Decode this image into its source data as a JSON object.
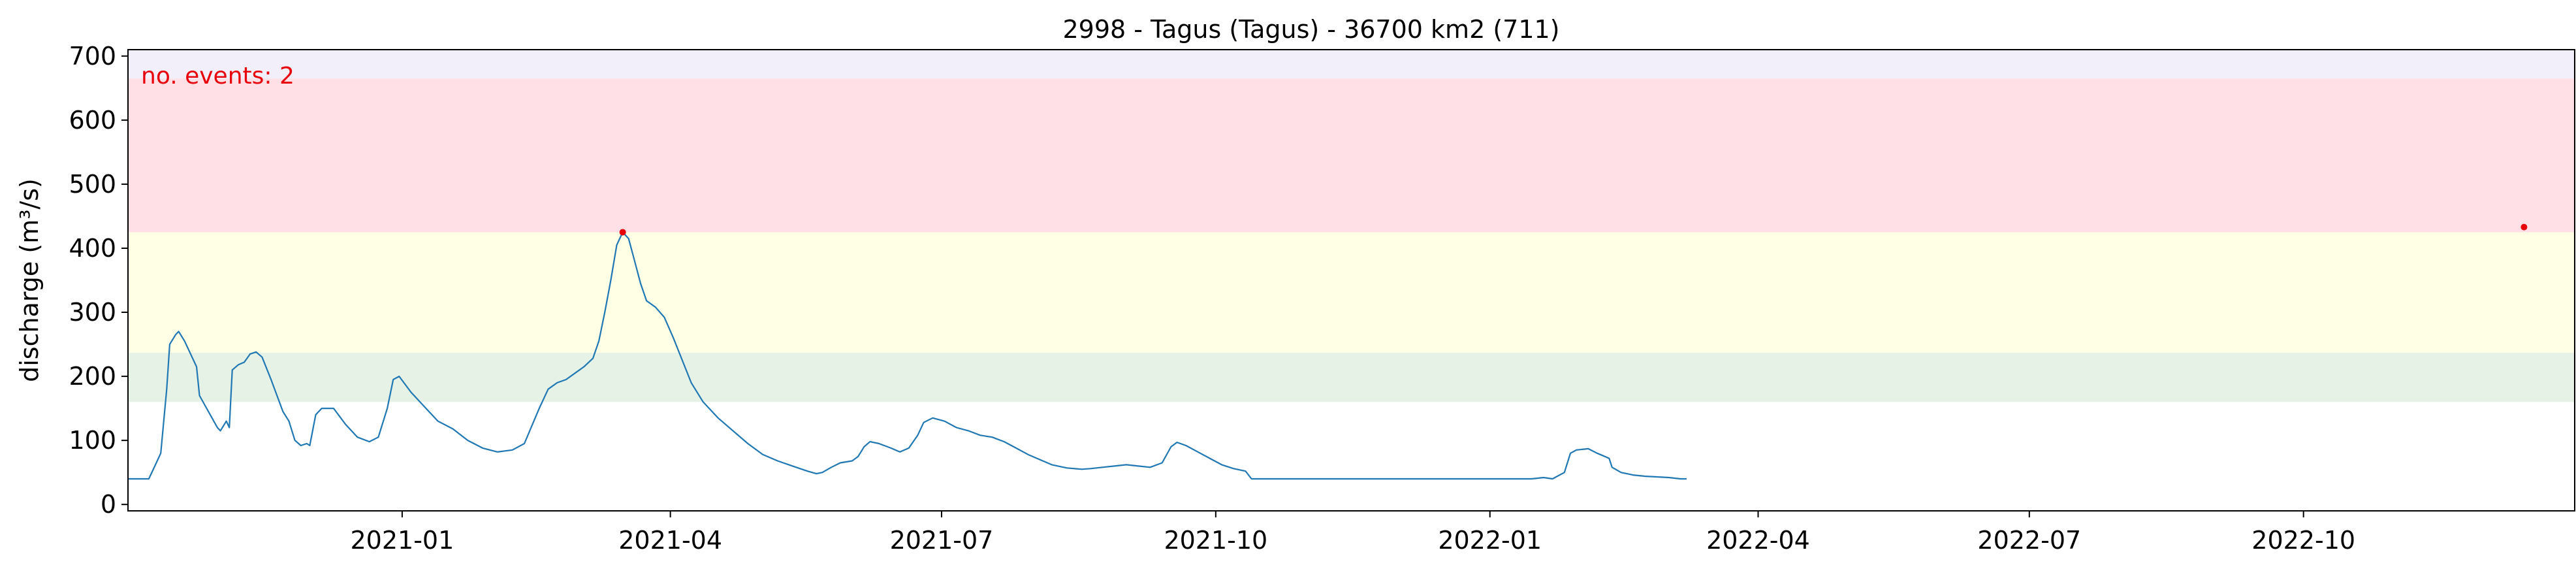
{
  "chart_data": {
    "type": "line",
    "title": "2998 - Tagus (Tagus) - 36700 km2 (711)",
    "xlabel": "",
    "ylabel": "discharge (m³/s)",
    "xlim": [
      "2020-10-01",
      "2022-12-31"
    ],
    "ylim": [
      -10,
      710
    ],
    "grid": false,
    "x_ticks": [
      "2021-01",
      "2021-04",
      "2021-07",
      "2021-10",
      "2022-01",
      "2022-04",
      "2022-07",
      "2022-10"
    ],
    "y_ticks": [
      0,
      100,
      200,
      300,
      400,
      500,
      600,
      700
    ],
    "annotation": {
      "text": "no. events: 2",
      "color": "#e8000b"
    },
    "threshold_bands": [
      {
        "from": 160,
        "to": 237,
        "color": "#e5f2e5"
      },
      {
        "from": 237,
        "to": 425,
        "color": "#ffffe5"
      },
      {
        "from": 425,
        "to": 665,
        "color": "#ffe0e6"
      },
      {
        "from": 665,
        "to": 710,
        "color": "#f2eefa"
      }
    ],
    "series": [
      {
        "color": "#1f77b4",
        "points": [
          [
            "2020-10-01",
            40
          ],
          [
            "2020-10-08",
            40
          ],
          [
            "2020-10-10",
            60
          ],
          [
            "2020-10-12",
            80
          ],
          [
            "2020-10-14",
            180
          ],
          [
            "2020-10-15",
            250
          ],
          [
            "2020-10-17",
            265
          ],
          [
            "2020-10-18",
            270
          ],
          [
            "2020-10-20",
            255
          ],
          [
            "2020-10-24",
            215
          ],
          [
            "2020-10-25",
            170
          ],
          [
            "2020-10-28",
            145
          ],
          [
            "2020-10-31",
            120
          ],
          [
            "2020-11-01",
            115
          ],
          [
            "2020-11-03",
            130
          ],
          [
            "2020-11-04",
            120
          ],
          [
            "2020-11-05",
            210
          ],
          [
            "2020-11-07",
            218
          ],
          [
            "2020-11-09",
            222
          ],
          [
            "2020-11-11",
            235
          ],
          [
            "2020-11-13",
            238
          ],
          [
            "2020-11-15",
            230
          ],
          [
            "2020-11-18",
            195
          ],
          [
            "2020-11-22",
            145
          ],
          [
            "2020-11-24",
            130
          ],
          [
            "2020-11-26",
            100
          ],
          [
            "2020-11-28",
            92
          ],
          [
            "2020-11-30",
            95
          ],
          [
            "2020-12-01",
            92
          ],
          [
            "2020-12-03",
            140
          ],
          [
            "2020-12-05",
            150
          ],
          [
            "2020-12-09",
            150
          ],
          [
            "2020-12-13",
            125
          ],
          [
            "2020-12-17",
            105
          ],
          [
            "2020-12-21",
            98
          ],
          [
            "2020-12-24",
            105
          ],
          [
            "2020-12-27",
            150
          ],
          [
            "2020-12-29",
            195
          ],
          [
            "2020-12-31",
            200
          ],
          [
            "2021-01-04",
            175
          ],
          [
            "2021-01-08",
            155
          ],
          [
            "2021-01-13",
            130
          ],
          [
            "2021-01-18",
            118
          ],
          [
            "2021-01-23",
            100
          ],
          [
            "2021-01-28",
            88
          ],
          [
            "2021-02-02",
            82
          ],
          [
            "2021-02-07",
            85
          ],
          [
            "2021-02-11",
            95
          ],
          [
            "2021-02-16",
            150
          ],
          [
            "2021-02-19",
            180
          ],
          [
            "2021-02-22",
            190
          ],
          [
            "2021-02-25",
            195
          ],
          [
            "2021-02-28",
            205
          ],
          [
            "2021-03-03",
            215
          ],
          [
            "2021-03-06",
            228
          ],
          [
            "2021-03-08",
            255
          ],
          [
            "2021-03-10",
            300
          ],
          [
            "2021-03-12",
            350
          ],
          [
            "2021-03-14",
            405
          ],
          [
            "2021-03-16",
            425
          ],
          [
            "2021-03-18",
            415
          ],
          [
            "2021-03-20",
            380
          ],
          [
            "2021-03-22",
            345
          ],
          [
            "2021-03-24",
            318
          ],
          [
            "2021-03-27",
            308
          ],
          [
            "2021-03-30",
            292
          ],
          [
            "2021-04-02",
            260
          ],
          [
            "2021-04-05",
            225
          ],
          [
            "2021-04-08",
            190
          ],
          [
            "2021-04-12",
            160
          ],
          [
            "2021-04-17",
            135
          ],
          [
            "2021-04-22",
            115
          ],
          [
            "2021-04-27",
            95
          ],
          [
            "2021-05-02",
            78
          ],
          [
            "2021-05-07",
            68
          ],
          [
            "2021-05-12",
            60
          ],
          [
            "2021-05-17",
            52
          ],
          [
            "2021-05-20",
            48
          ],
          [
            "2021-05-22",
            50
          ],
          [
            "2021-05-25",
            58
          ],
          [
            "2021-05-28",
            65
          ],
          [
            "2021-06-01",
            68
          ],
          [
            "2021-06-03",
            75
          ],
          [
            "2021-06-05",
            90
          ],
          [
            "2021-06-07",
            98
          ],
          [
            "2021-06-10",
            95
          ],
          [
            "2021-06-14",
            88
          ],
          [
            "2021-06-17",
            82
          ],
          [
            "2021-06-20",
            88
          ],
          [
            "2021-06-23",
            108
          ],
          [
            "2021-06-25",
            128
          ],
          [
            "2021-06-28",
            135
          ],
          [
            "2021-07-02",
            130
          ],
          [
            "2021-07-06",
            120
          ],
          [
            "2021-07-10",
            115
          ],
          [
            "2021-07-14",
            108
          ],
          [
            "2021-07-18",
            105
          ],
          [
            "2021-07-22",
            98
          ],
          [
            "2021-07-26",
            88
          ],
          [
            "2021-07-30",
            78
          ],
          [
            "2021-08-03",
            70
          ],
          [
            "2021-08-07",
            62
          ],
          [
            "2021-08-12",
            57
          ],
          [
            "2021-08-17",
            55
          ],
          [
            "2021-08-20",
            56
          ],
          [
            "2021-08-24",
            58
          ],
          [
            "2021-08-28",
            60
          ],
          [
            "2021-09-01",
            62
          ],
          [
            "2021-09-05",
            60
          ],
          [
            "2021-09-09",
            58
          ],
          [
            "2021-09-13",
            65
          ],
          [
            "2021-09-16",
            90
          ],
          [
            "2021-09-18",
            97
          ],
          [
            "2021-09-21",
            92
          ],
          [
            "2021-09-25",
            82
          ],
          [
            "2021-09-29",
            72
          ],
          [
            "2021-10-03",
            62
          ],
          [
            "2021-10-07",
            56
          ],
          [
            "2021-10-11",
            52
          ],
          [
            "2021-10-13",
            40
          ],
          [
            "2022-01-12",
            40
          ],
          [
            "2022-01-15",
            40
          ],
          [
            "2022-01-19",
            42
          ],
          [
            "2022-01-22",
            40
          ],
          [
            "2022-01-26",
            50
          ],
          [
            "2022-01-28",
            80
          ],
          [
            "2022-01-30",
            85
          ],
          [
            "2022-02-03",
            87
          ],
          [
            "2022-02-06",
            80
          ],
          [
            "2022-02-08",
            76
          ],
          [
            "2022-02-10",
            72
          ],
          [
            "2022-02-11",
            58
          ],
          [
            "2022-02-14",
            50
          ],
          [
            "2022-02-18",
            46
          ],
          [
            "2022-02-22",
            44
          ],
          [
            "2022-02-26",
            43
          ],
          [
            "2022-03-02",
            42
          ],
          [
            "2022-03-06",
            40
          ],
          [
            "2022-03-08",
            40
          ]
        ]
      }
    ],
    "event_markers": {
      "color": "#e8000b",
      "points": [
        [
          "2021-03-16",
          425
        ],
        [
          "2022-12-14",
          433
        ]
      ]
    }
  }
}
